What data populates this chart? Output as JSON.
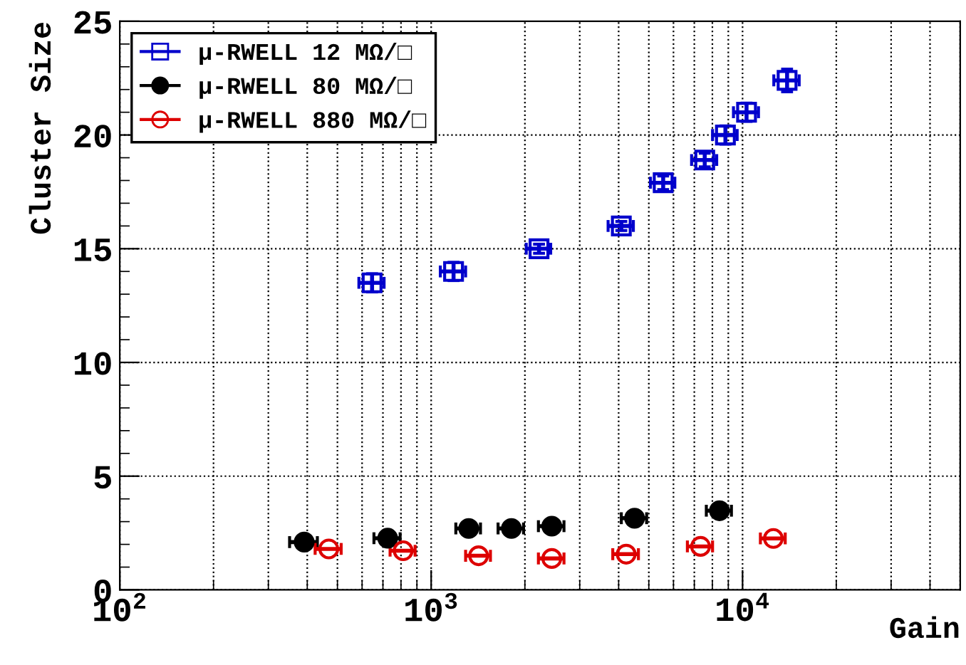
{
  "chart_data": {
    "type": "scatter",
    "xlabel": "Gain",
    "ylabel": "Cluster Size",
    "log": "x",
    "grid": true,
    "legend": "top left",
    "xlim": [
      100,
      50000
    ],
    "xticks": [
      {
        "value": 100,
        "label": "10$^{2}$"
      },
      {
        "value": 1000,
        "label": "10$^{3}$"
      },
      {
        "value": 10000,
        "label": "10$^{4}$"
      }
    ],
    "ylim": [
      0,
      25
    ],
    "yticks": [
      0,
      5,
      10,
      15,
      20,
      25
    ],
    "series": [
      {
        "name": "μ-RWELL 12 MΩ/□",
        "color": "#0000cc",
        "marker": "square",
        "x": [
          646,
          1180,
          2220,
          4080,
          5560,
          7560,
          8810,
          10300,
          13900
        ],
        "values": [
          13.5,
          14.0,
          15.0,
          16.0,
          17.9,
          18.9,
          20.0,
          21.0,
          22.4
        ],
        "errors": [
          0.4,
          0.4,
          0.2,
          0.2,
          0.3,
          0.3,
          0.4,
          0.4,
          0.5
        ],
        "xerrors": [
          60,
          110,
          200,
          380,
          500,
          700,
          800,
          950,
          1300
        ]
      },
      {
        "name": "μ-RWELL 80 MΩ/□",
        "color": "#000000",
        "marker": "circle",
        "x": [
          391,
          725,
          1320,
          1810,
          2440,
          4500,
          8430
        ],
        "values": [
          2.1,
          2.27,
          2.7,
          2.7,
          2.8,
          3.15,
          3.48
        ],
        "xerrors": [
          40,
          70,
          120,
          170,
          230,
          420,
          780
        ]
      },
      {
        "name": "μ-RWELL 880 MΩ/□",
        "color": "#dd0000",
        "marker": "open circle",
        "x": [
          469,
          813,
          1420,
          2440,
          4230,
          7330,
          12560
        ],
        "values": [
          1.8,
          1.72,
          1.5,
          1.38,
          1.57,
          1.91,
          2.26
        ],
        "xerrors": [
          45,
          75,
          130,
          230,
          400,
          680,
          1150
        ]
      }
    ]
  }
}
